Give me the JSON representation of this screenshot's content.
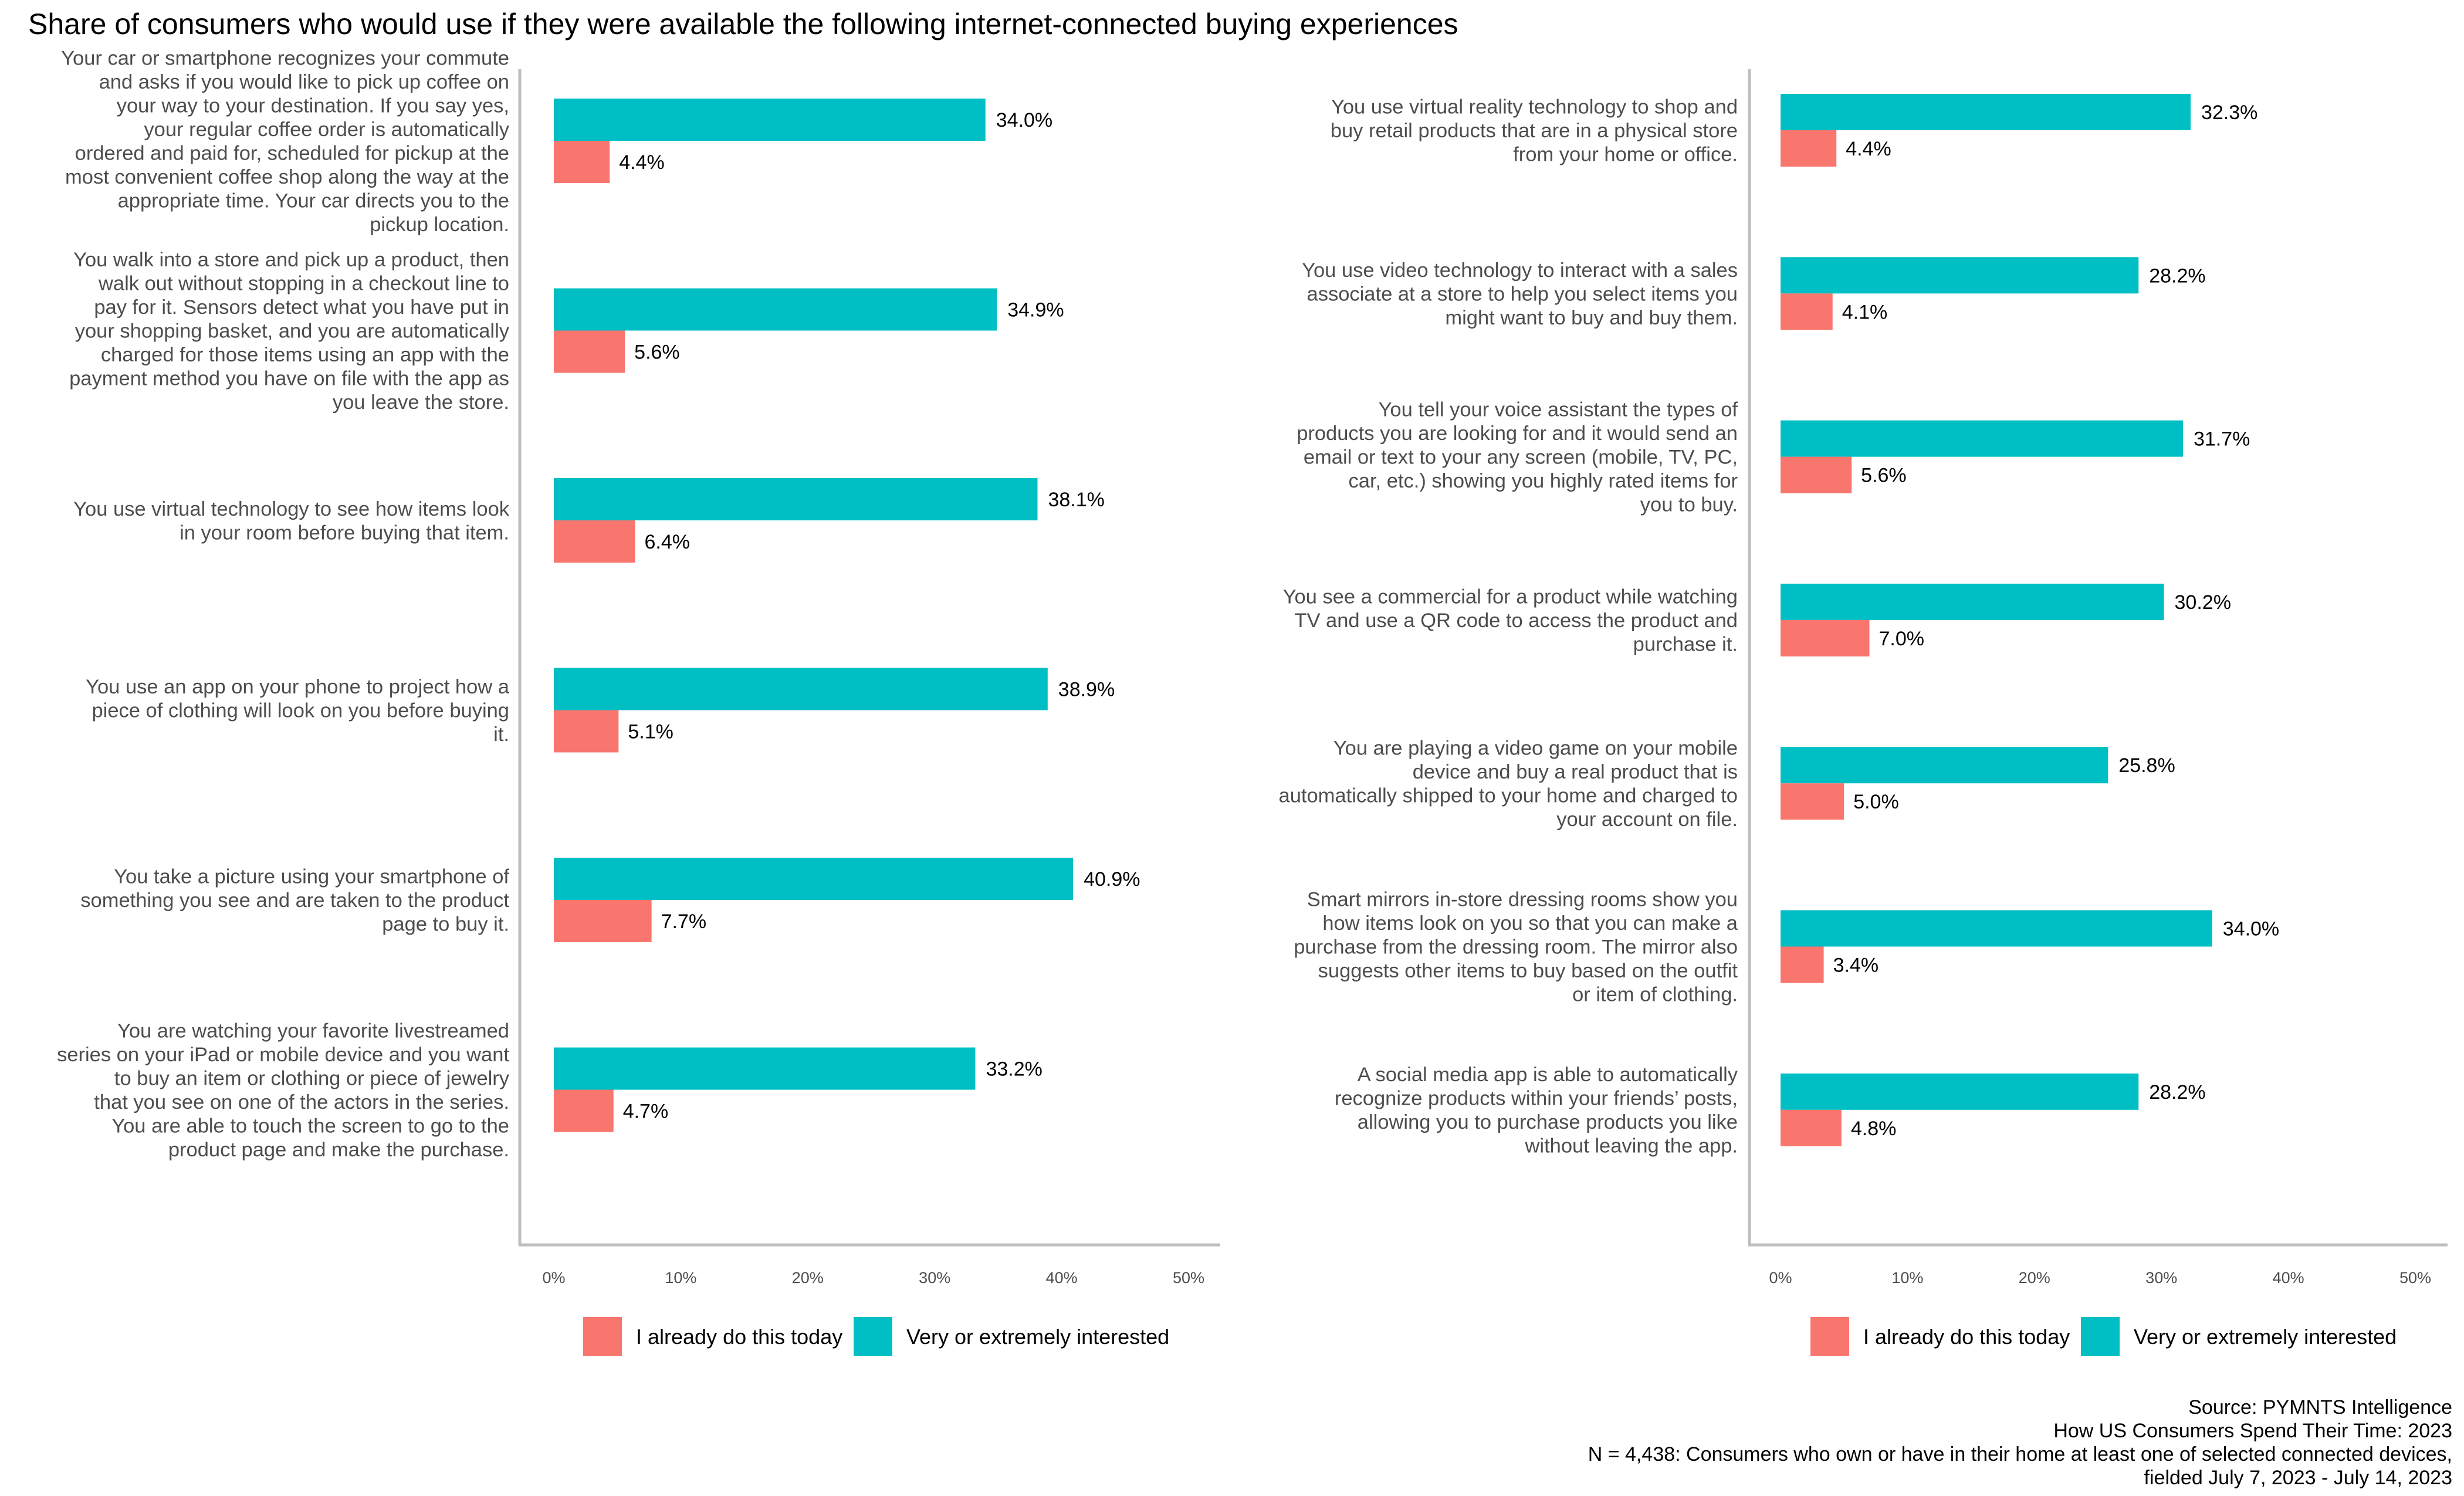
{
  "title": "Share of consumers who would use if they were available the following internet-connected buying experiences",
  "colors": {
    "already": "#F8766D",
    "interested": "#00BFC4",
    "axis": "#BEBEBE",
    "category_text": "#4D4D4D"
  },
  "legend": [
    {
      "key": "already",
      "label": "I already do this today"
    },
    {
      "key": "interested",
      "label": "Very or extremely interested"
    }
  ],
  "source": [
    "Source: PYMNTS Intelligence",
    "How US Consumers Spend Their Time: 2023",
    "N = 4,438: Consumers who own or have in their home at least one of selected connected devices,",
    "fielded July 7, 2023 - July 14, 2023"
  ],
  "chart_data": [
    {
      "type": "bar",
      "orientation": "horizontal",
      "panel": "left",
      "title": "",
      "xlabel": "",
      "ylabel": "",
      "xlim": [
        0,
        50
      ],
      "x_ticks": [
        "0%",
        "10%",
        "20%",
        "30%",
        "40%",
        "50%"
      ],
      "grid": false,
      "legend_position": "bottom",
      "categories": [
        [
          "Your car or smartphone recognizes your commute",
          "and asks if you would like to pick up coffee on",
          "your way to your destination. If you say yes,",
          "your regular coffee order is automatically",
          "ordered and paid for, scheduled for pickup at the",
          "most convenient coffee shop along the way at the",
          "appropriate time. Your car directs you to the",
          "pickup location."
        ],
        [
          "You walk into a store and pick up a product, then",
          "walk out without stopping in a checkout line to",
          "pay for it. Sensors detect what you have put in",
          "your shopping basket, and you are automatically",
          "charged for those items using an app with the",
          "payment method you have on file with the app as",
          "you leave the store."
        ],
        [
          "You use virtual technology to see how items look",
          "in your room before buying that item."
        ],
        [
          "You use an app on your phone to project how a",
          "piece of clothing will look on you before buying",
          "it."
        ],
        [
          "You take a picture using your smartphone of",
          "something you see and are taken to the product",
          "page to buy it."
        ],
        [
          "You are watching your favorite livestreamed",
          "series on your iPad or mobile device and you want",
          "to buy an item or clothing or piece of jewelry",
          "that you see on one of the actors in the series.",
          "You are able to touch the screen to go to the",
          "product page and make the purchase."
        ]
      ],
      "series": [
        {
          "name": "Very or extremely interested",
          "key": "interested",
          "values": [
            34.0,
            34.9,
            38.1,
            38.9,
            40.9,
            33.2
          ],
          "labels": [
            "34.0%",
            "34.9%",
            "38.1%",
            "38.9%",
            "40.9%",
            "33.2%"
          ]
        },
        {
          "name": "I already do this today",
          "key": "already",
          "values": [
            4.4,
            5.6,
            6.4,
            5.1,
            7.7,
            4.7
          ],
          "labels": [
            "4.4%",
            "5.6%",
            "6.4%",
            "5.1%",
            "7.7%",
            "4.7%"
          ]
        }
      ]
    },
    {
      "type": "bar",
      "orientation": "horizontal",
      "panel": "right",
      "title": "",
      "xlabel": "",
      "ylabel": "",
      "xlim": [
        0,
        50
      ],
      "x_ticks": [
        "0%",
        "10%",
        "20%",
        "30%",
        "40%",
        "50%"
      ],
      "grid": false,
      "legend_position": "bottom",
      "categories": [
        [
          "You use virtual reality technology to shop and",
          "buy retail products that are in a physical store",
          "from your home or office."
        ],
        [
          "You use video technology to interact with a sales",
          "associate at a store to help you select items you",
          "might want to buy and buy them."
        ],
        [
          "You tell your voice assistant the types of",
          "products you are looking for and it would send an",
          "email or text to your any screen (mobile, TV, PC,",
          "car, etc.)  showing you highly rated items for",
          "you to buy."
        ],
        [
          "You see a commercial for a product while watching",
          "TV and use a QR code to access the product and",
          "purchase it."
        ],
        [
          "You are playing a video game on your mobile",
          "device and buy a real product that is",
          "automatically shipped to your home and charged to",
          "your account on file."
        ],
        [
          "Smart mirrors in-store dressing rooms show you",
          "how items look on you so that you can make a",
          "purchase from the dressing room. The mirror also",
          "suggests other items to buy based on the outfit",
          "or item of clothing."
        ],
        [
          "A social media app is able to automatically",
          "recognize products within your friends’ posts,",
          "allowing you to purchase products you like",
          "without leaving the app."
        ]
      ],
      "series": [
        {
          "name": "Very or extremely interested",
          "key": "interested",
          "values": [
            32.3,
            28.2,
            31.7,
            30.2,
            25.8,
            34.0,
            28.2
          ],
          "labels": [
            "32.3%",
            "28.2%",
            "31.7%",
            "30.2%",
            "25.8%",
            "34.0%",
            "28.2%"
          ]
        },
        {
          "name": "I already do this today",
          "key": "already",
          "values": [
            4.4,
            4.1,
            5.6,
            7.0,
            5.0,
            3.4,
            4.8
          ],
          "labels": [
            "4.4%",
            "4.1%",
            "5.6%",
            "7.0%",
            "5.0%",
            "3.4%",
            "4.8%"
          ]
        }
      ]
    }
  ]
}
